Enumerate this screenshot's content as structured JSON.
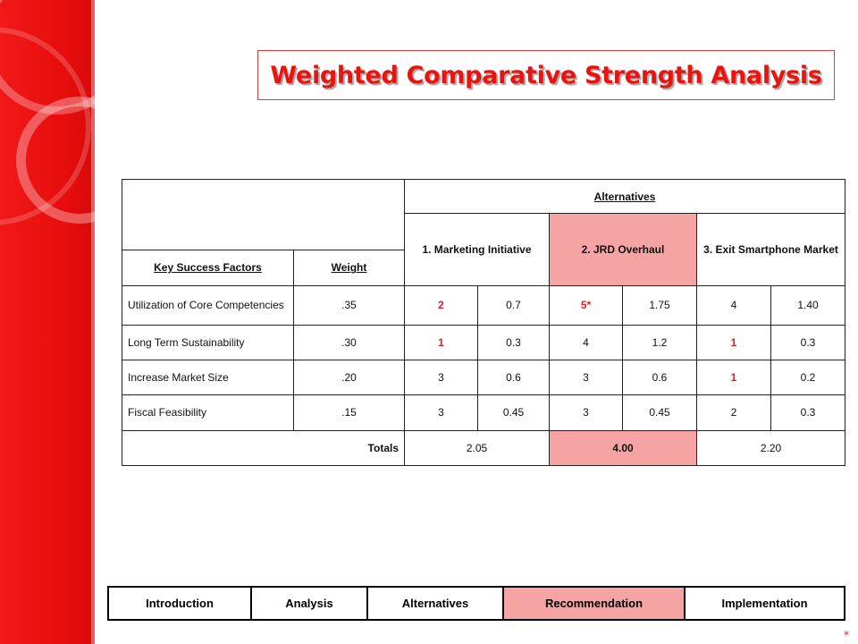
{
  "title": "Weighted Comparative Strength Analysis",
  "table": {
    "alternatives_header": "Alternatives",
    "key_factors_header": "Key Success Factors",
    "weight_header": "Weight",
    "alternatives": [
      "1. Marketing Initiative",
      "2.  JRD Overhaul",
      "3.  Exit Smartphone Market"
    ],
    "rows": [
      {
        "factor": "Utilization of Core Competencies",
        "weight": ".35",
        "a1_score": "2",
        "a1_weighted": "0.7",
        "a2_score": "5*",
        "a2_weighted": "1.75",
        "a3_score": "4",
        "a3_weighted": "1.40"
      },
      {
        "factor": "Long Term Sustainability",
        "weight": ".30",
        "a1_score": "1",
        "a1_weighted": "0.3",
        "a2_score": "4",
        "a2_weighted": "1.2",
        "a3_score": "1",
        "a3_weighted": "0.3"
      },
      {
        "factor": "Increase Market Size",
        "weight": ".20",
        "a1_score": "3",
        "a1_weighted": "0.6",
        "a2_score": "3",
        "a2_weighted": "0.6",
        "a3_score": "1",
        "a3_weighted": "0.2"
      },
      {
        "factor": "Fiscal Feasibility",
        "weight": ".15",
        "a1_score": "3",
        "a1_weighted": "0.45",
        "a2_score": "3",
        "a2_weighted": "0.45",
        "a3_score": "2",
        "a3_weighted": "0.3"
      }
    ],
    "totals_label": "Totals",
    "totals": [
      "2.05",
      "4.00",
      "2.20"
    ]
  },
  "nav": {
    "items": [
      "Introduction",
      "Analysis",
      "Alternatives",
      "Recommendation",
      "Implementation"
    ],
    "active": "Recommendation"
  },
  "footer_mark": "*",
  "colors": {
    "accent_red": "#e8140f",
    "highlight_pink": "#f5a3a3",
    "score_red": "#e51a1a"
  }
}
